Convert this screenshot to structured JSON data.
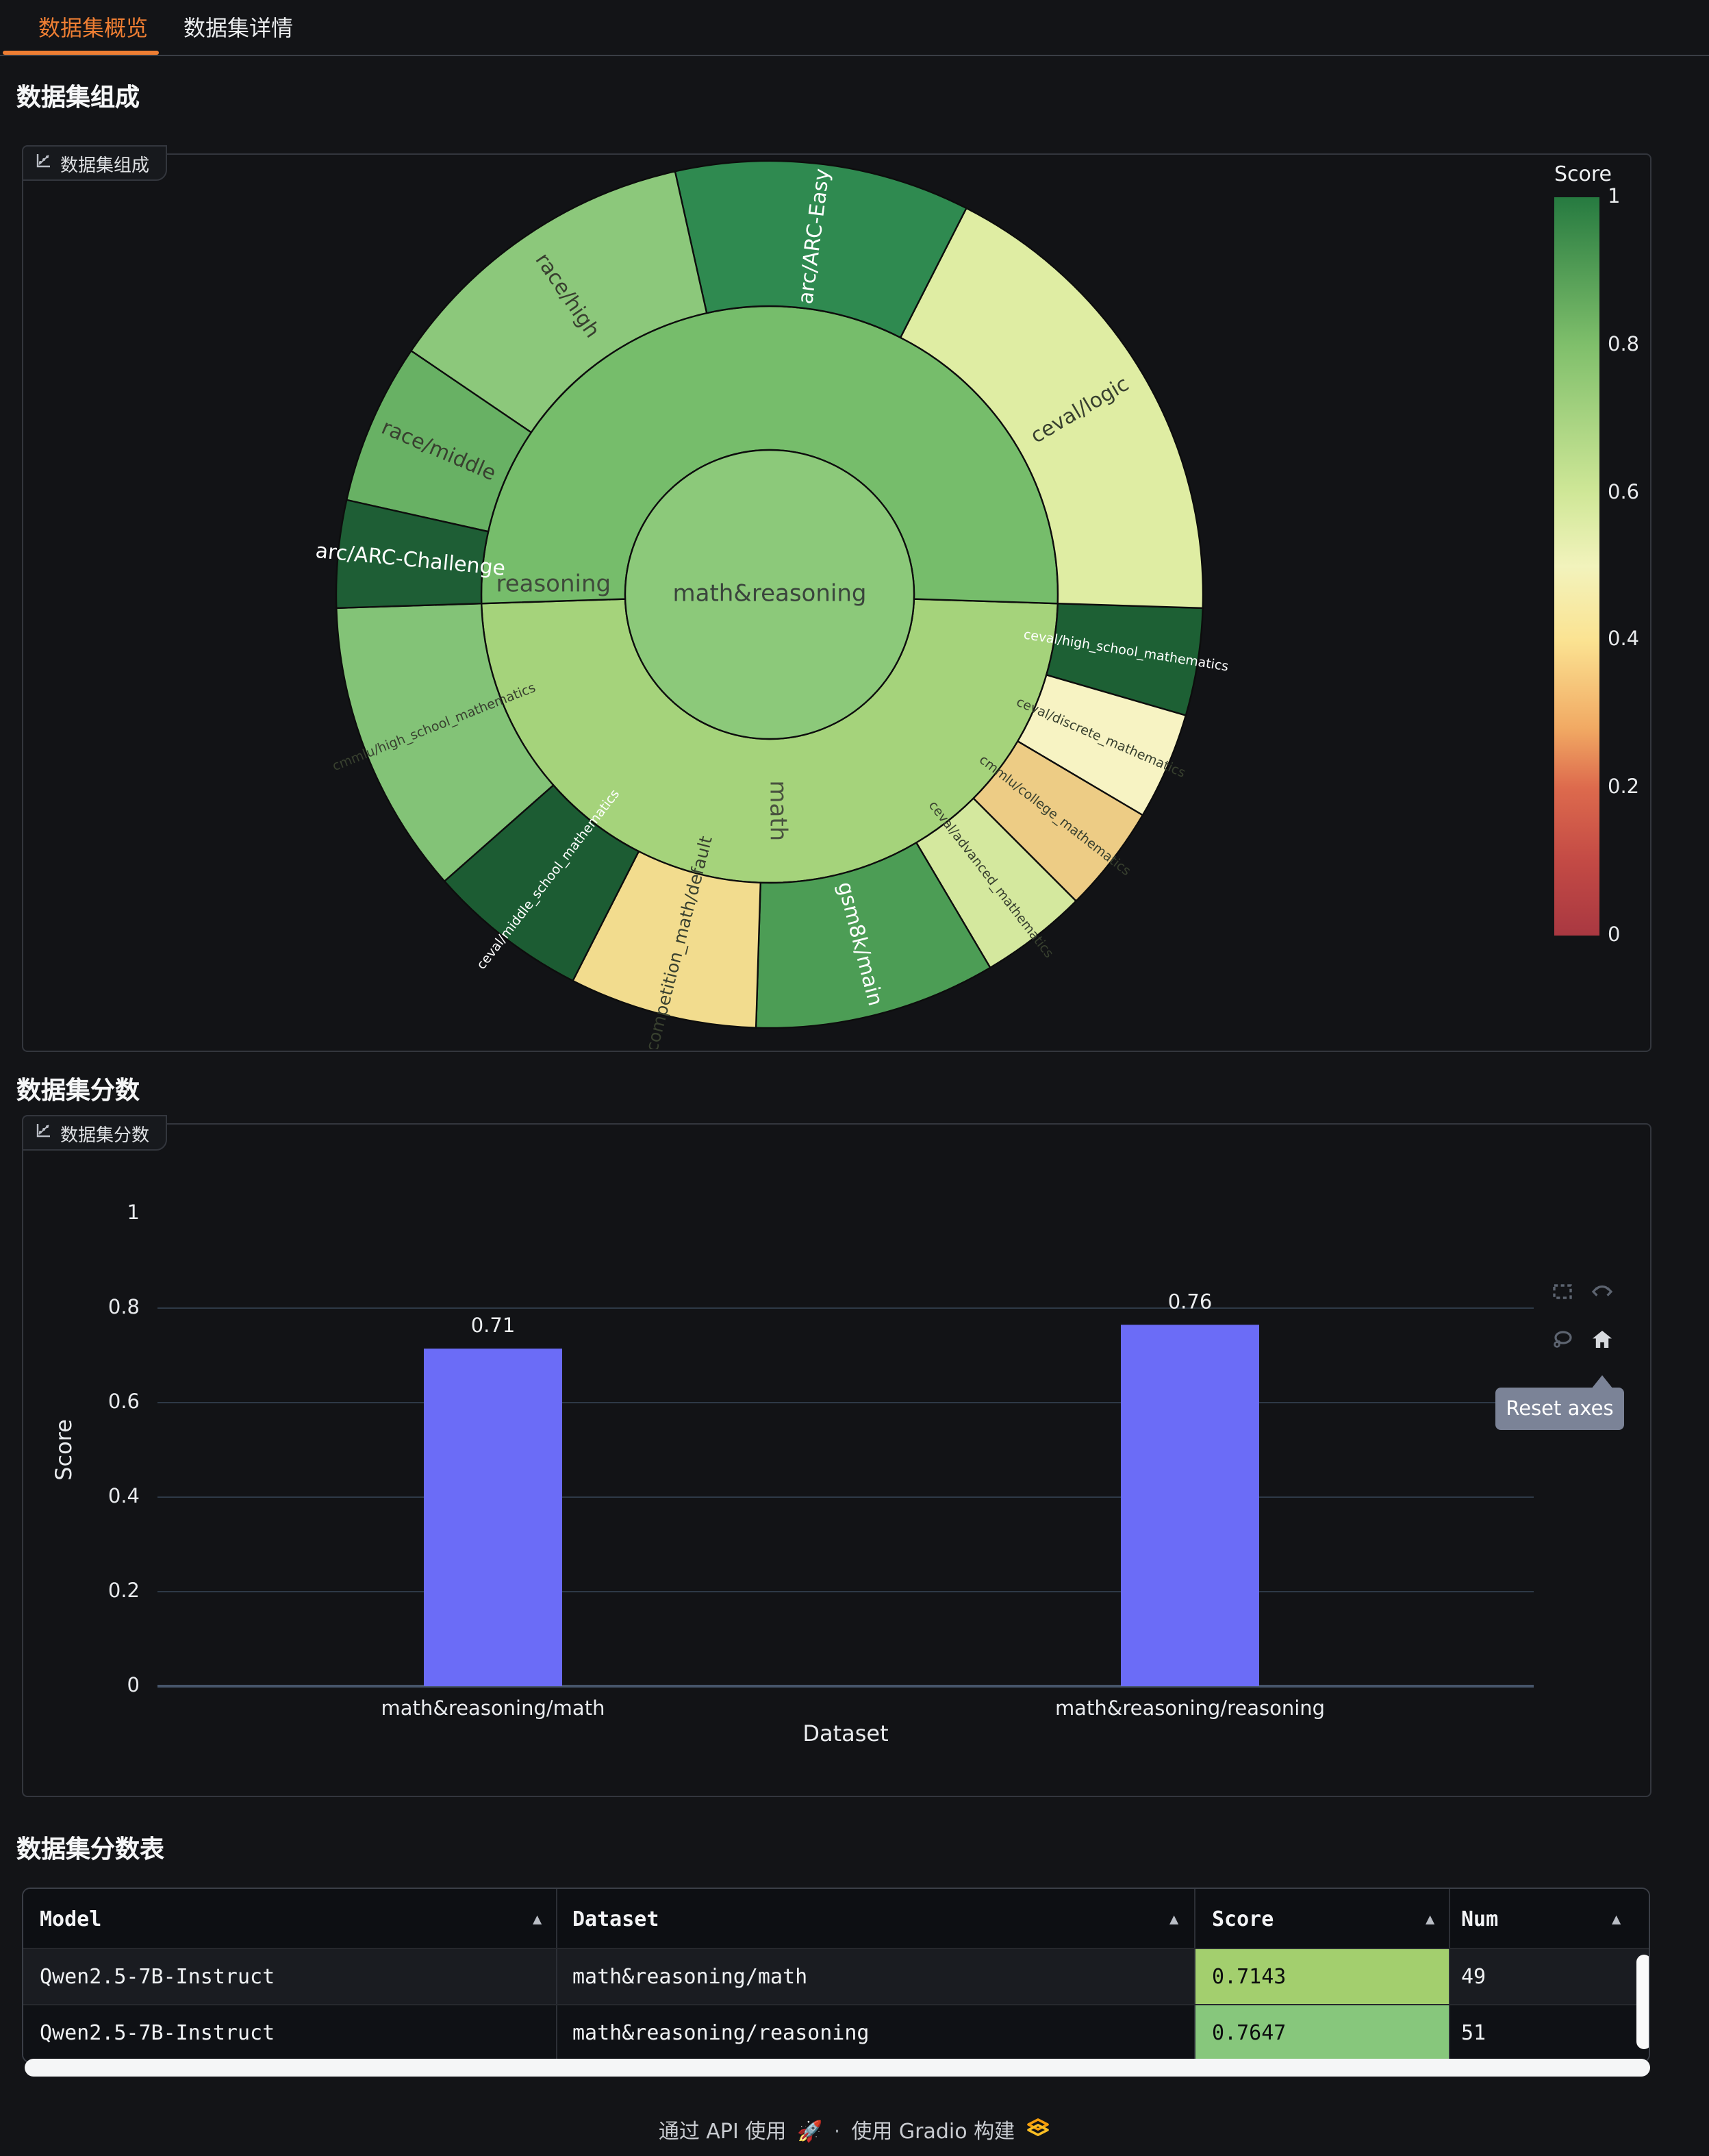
{
  "tabs": [
    {
      "label": "数据集概览",
      "active": true
    },
    {
      "label": "数据集详情",
      "active": false
    }
  ],
  "sections": {
    "composition": "数据集组成",
    "scores": "数据集分数",
    "table": "数据集分数表"
  },
  "panel_labels": {
    "composition": "数据集组成",
    "scores": "数据集分数"
  },
  "chart_data": [
    {
      "type": "sunburst",
      "title": "数据集组成",
      "center": {
        "name": "math&reasoning",
        "color": "#8cc97a",
        "label_color": "#3a443c"
      },
      "start_angle": -1.8,
      "inner_ring": [
        {
          "name": "math",
          "count": 49,
          "color": "#a5d37b",
          "label_color": "#49523f",
          "label_angle": -88,
          "label_rot": 90
        },
        {
          "name": "reasoning",
          "count": 51,
          "color": "#76bd6b",
          "label_color": "#3f4a3b",
          "label_angle": 177.5,
          "label_rot": 0
        }
      ],
      "outer_math": [
        {
          "name": "ceval/high_school_mathematics",
          "count": 4,
          "color": "#1d6034",
          "label_color": "#ffffff",
          "fs": 9.5
        },
        {
          "name": "ceval/discrete_mathematics",
          "count": 4,
          "color": "#f7f3c3",
          "label_color": "#38402f",
          "fs": 9.5
        },
        {
          "name": "cmmlu/college_mathematics",
          "count": 4,
          "color": "#edcc85",
          "label_color": "#38402f",
          "fs": 9.5
        },
        {
          "name": "ceval/advanced_mathematics",
          "count": 4,
          "color": "#d4e89e",
          "label_color": "#38402f",
          "fs": 9.5
        },
        {
          "name": "gsm8k/main",
          "count": 9,
          "color": "#4c9d55",
          "label_color": "#ffffff",
          "fs": 15
        },
        {
          "name": "competition_math/default",
          "count": 7,
          "color": "#f2dc8e",
          "label_color": "#38402f",
          "fs": 12.5
        },
        {
          "name": "ceval/middle_school_mathematics",
          "count": 6,
          "color": "#1c5c33",
          "label_color": "#ffffff",
          "fs": 9.5
        },
        {
          "name": "cmmlu/high_school_mathematics",
          "count": 11,
          "color": "#83c377",
          "label_color": "#38402f",
          "fs": 9.5
        }
      ],
      "outer_reasoning": [
        {
          "name": "ceval/logic",
          "count": 18,
          "color": "#dfeda3",
          "label_color": "#38402f",
          "fs": 15
        },
        {
          "name": "arc/ARC-Easy",
          "count": 11,
          "color": "#2f8a50",
          "label_color": "#ffffff",
          "fs": 15
        },
        {
          "name": "race/high",
          "count": 12,
          "color": "#8cc87b",
          "label_color": "#38402f",
          "fs": 15
        },
        {
          "name": "race/middle",
          "count": 6,
          "color": "#68b164",
          "label_color": "#38402f",
          "fs": 15
        },
        {
          "name": "arc/ARC-Challenge",
          "count": 4,
          "color": "#1e5e35",
          "label_color": "#ffffff",
          "fs": 15
        }
      ],
      "colorbar": {
        "title": "Score",
        "ticks": [
          "1",
          "0.8",
          "0.6",
          "0.4",
          "0.2",
          "0"
        ],
        "min": 0,
        "max": 1,
        "gradient": [
          [
            "#267a40",
            0
          ],
          [
            "#7fbf6b",
            20
          ],
          [
            "#cfe797",
            40
          ],
          [
            "#f2f3bc",
            50
          ],
          [
            "#fbe392",
            60
          ],
          [
            "#f1a963",
            72
          ],
          [
            "#dd6a4d",
            80
          ],
          [
            "#c34a45",
            90
          ],
          [
            "#a93841",
            100
          ]
        ]
      }
    },
    {
      "type": "bar",
      "categories": [
        "math&reasoning/math",
        "math&reasoning/reasoning"
      ],
      "values": [
        0.7143,
        0.7647
      ],
      "value_labels": [
        "0.71",
        "0.76"
      ],
      "xlabel": "Dataset",
      "ylabel": "Score",
      "ylim": [
        0,
        1
      ],
      "yticks": [
        "0",
        "0.2",
        "0.4",
        "0.6",
        "0.8",
        "1"
      ],
      "bar_color": "#6b6cf7",
      "grid": true,
      "legend": "none"
    }
  ],
  "modebar": {
    "tooltip": "Reset axes",
    "icons": [
      "box-select",
      "autoscale",
      "lasso-select",
      "reset-axes"
    ]
  },
  "table": {
    "headers": [
      {
        "label": "Model",
        "arrow": "▲"
      },
      {
        "label": "Dataset",
        "arrow": "▲"
      },
      {
        "label": "Score",
        "arrow": "▲"
      },
      {
        "label": "Num",
        "arrow": "▲"
      }
    ],
    "rows": [
      {
        "model": "Qwen2.5-7B-Instruct",
        "dataset": "math&reasoning/math",
        "score": "0.7143",
        "score_bg": "#a3cf6e",
        "num": "49"
      },
      {
        "model": "Qwen2.5-7B-Instruct",
        "dataset": "math&reasoning/reasoning",
        "score": "0.7647",
        "score_bg": "#87c77c",
        "num": "51"
      }
    ]
  },
  "footer": {
    "use_api": "通过 API 使用",
    "rocket": "🚀",
    "sep": "·",
    "built_with": "使用 Gradio 构建"
  }
}
